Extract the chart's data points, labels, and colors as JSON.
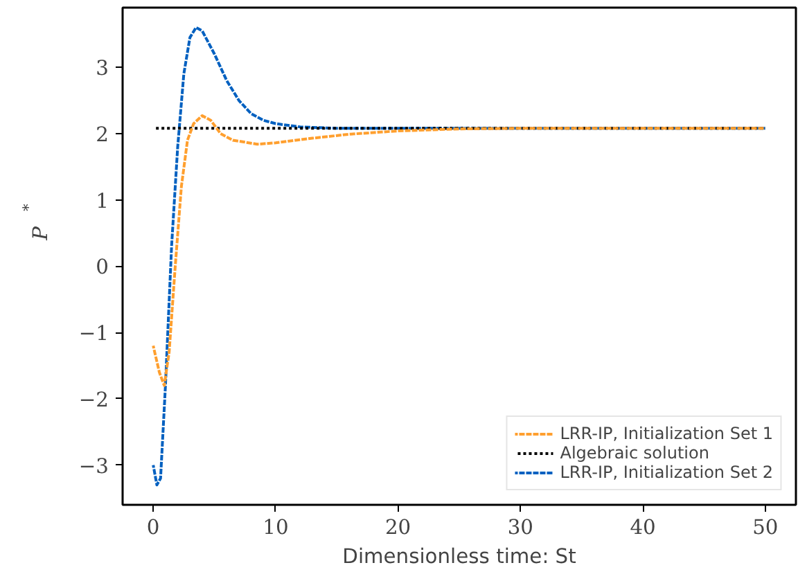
{
  "chart_data": {
    "type": "line",
    "xlabel": "Dimensionless time: St",
    "ylabel": "P$^{*}$",
    "xlim": [
      -2.5,
      52.5
    ],
    "ylim": [
      -3.6,
      3.9
    ],
    "xticks": [
      0,
      10,
      20,
      30,
      40,
      50
    ],
    "yticks": [
      {
        "value": -3,
        "label": "−3"
      },
      {
        "value": -2,
        "label": "−2"
      },
      {
        "value": -1,
        "label": "−1"
      },
      0,
      1,
      2,
      3
    ],
    "grid": false,
    "legend": "bottom right",
    "series": [
      {
        "name": "LRR-IP, Initialization Set 1",
        "color": "#ff9f2e",
        "line_style": "dashed",
        "x": [
          0,
          0.5,
          0.9,
          1.3,
          1.8,
          2.3,
          2.8,
          3.3,
          4,
          4.7,
          5.5,
          6.5,
          8.5,
          10,
          13,
          16,
          20,
          25,
          30,
          50
        ],
        "values": [
          -1.2,
          -1.6,
          -1.8,
          -1.3,
          0,
          1.2,
          1.9,
          2.15,
          2.27,
          2.2,
          2.0,
          1.9,
          1.84,
          1.86,
          1.93,
          1.99,
          2.04,
          2.07,
          2.08,
          2.08
        ]
      },
      {
        "name": "Algebraic solution",
        "color": "#000000",
        "line_style": "dotted",
        "x": [
          0,
          50
        ],
        "values": [
          2.08,
          2.08
        ]
      },
      {
        "name": "LRR-IP, Initialization Set 2",
        "color": "#0060c0",
        "line_style": "dashed",
        "x": [
          0,
          0.3,
          0.6,
          1,
          1.5,
          2,
          2.5,
          3,
          3.5,
          4,
          5,
          6,
          7,
          8,
          9,
          10,
          12,
          15,
          20,
          50
        ],
        "values": [
          -3.0,
          -3.3,
          -3.2,
          -1.8,
          0.3,
          1.8,
          2.9,
          3.45,
          3.6,
          3.55,
          3.2,
          2.8,
          2.5,
          2.3,
          2.2,
          2.15,
          2.1,
          2.08,
          2.08,
          2.08
        ]
      }
    ]
  }
}
